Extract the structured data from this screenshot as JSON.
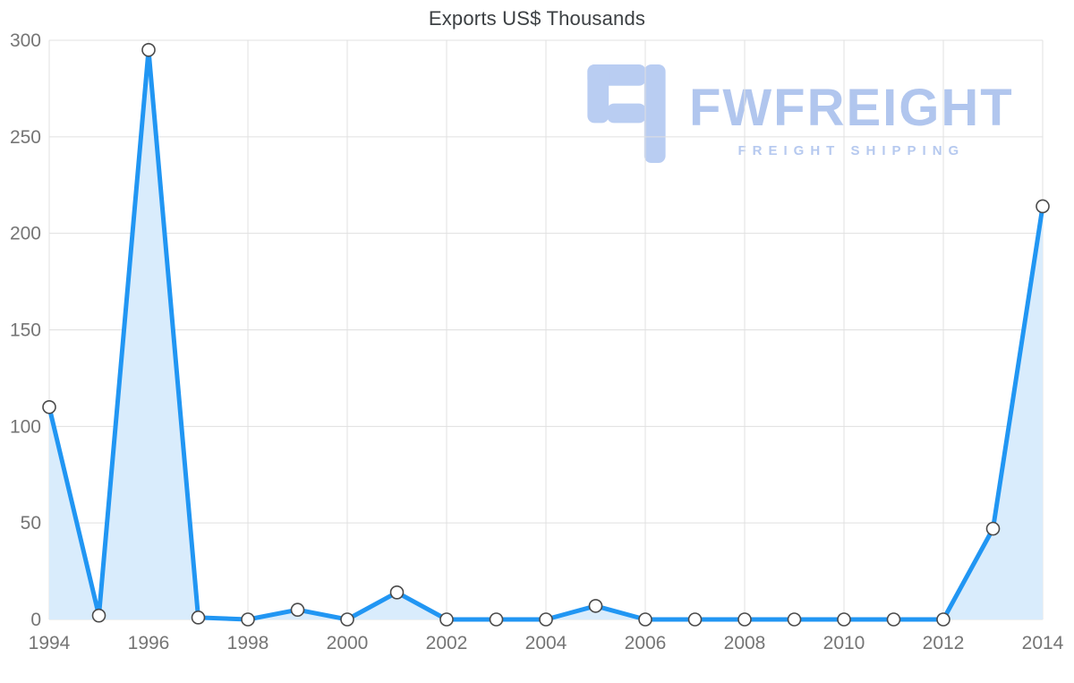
{
  "chart_data": {
    "type": "area",
    "title": "Exports US$ Thousands",
    "series_name": "Exports US$ Thousands",
    "x": [
      1994,
      1995,
      1996,
      1997,
      1998,
      1999,
      2000,
      2001,
      2002,
      2003,
      2004,
      2005,
      2006,
      2007,
      2008,
      2009,
      2010,
      2011,
      2012,
      2013,
      2014
    ],
    "values": [
      110,
      2,
      295,
      1,
      0,
      5,
      0,
      14,
      0,
      0,
      0,
      7,
      0,
      0,
      0,
      0,
      0,
      0,
      0,
      47,
      214
    ],
    "xlabel": "",
    "ylabel": "",
    "ylim": [
      0,
      300
    ],
    "yticks": [
      0,
      50,
      100,
      150,
      200,
      250,
      300
    ],
    "xticks": [
      1994,
      1996,
      1998,
      2000,
      2002,
      2004,
      2006,
      2008,
      2010,
      2012,
      2014
    ],
    "grid": true,
    "legend_position": "none",
    "colors": {
      "line": "#2196f3",
      "area": "#d9ecfc",
      "marker_fill": "#ffffff",
      "marker_stroke": "#4a4a4a",
      "grid": "#e0e0e0",
      "tick_label": "#757575",
      "title": "#3c4043"
    }
  },
  "watermark": {
    "brand": "FWFREIGHT",
    "tagline": "FREIGHT SHIPPING",
    "brand_color": "#b1c6ee",
    "tagline_color": "#b6c9ef",
    "logo_color": "#b9cdf2",
    "logo_icon": "fwfreight-logo-icon"
  }
}
